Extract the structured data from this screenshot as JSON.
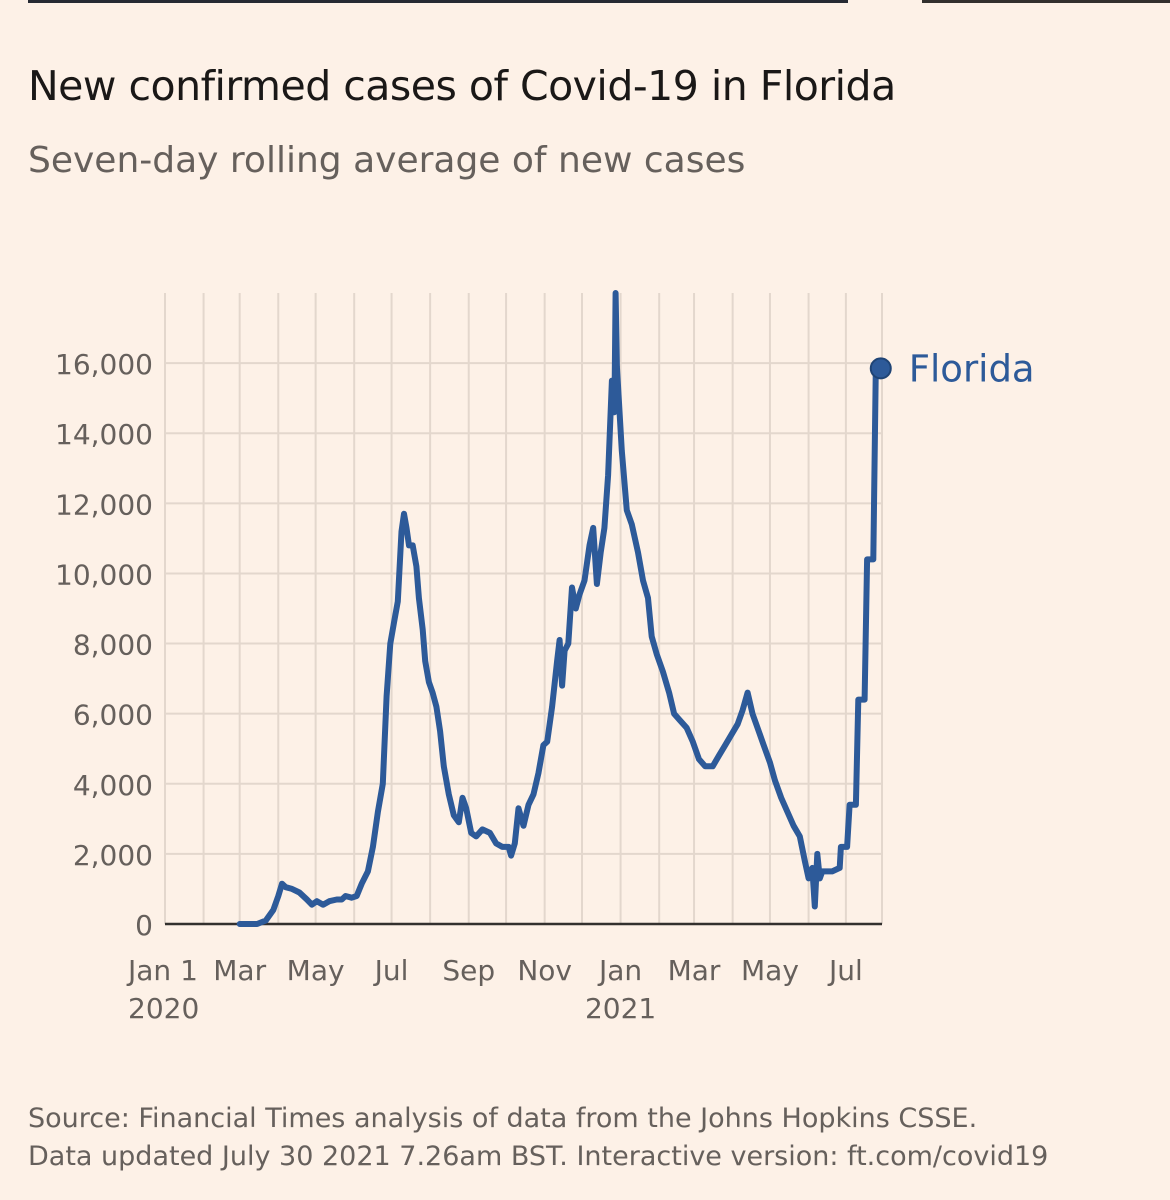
{
  "header": {
    "title": "New confirmed cases of Covid-19 in Florida",
    "subtitle": "Seven-day rolling average of new cases"
  },
  "footer": {
    "source_line": "Source: Financial Times analysis of data from the Johns Hopkins CSSE.",
    "updated_line": "Data updated July 30 2021 7.26am BST. Interactive version: ft.com/covid19"
  },
  "colors": {
    "background": "#fdf1e7",
    "line": "#2d5a99",
    "grid": "#e3d7cd",
    "axis": "#33302e",
    "tick_text": "#66605c"
  },
  "chart_data": {
    "type": "line",
    "title": "New confirmed cases of Covid-19 in Florida",
    "subtitle": "Seven-day rolling average of new cases",
    "xlabel": "",
    "ylabel": "",
    "xlim": [
      "2020-01-01",
      "2021-07-30"
    ],
    "ylim": [
      0,
      18000
    ],
    "grid": true,
    "y_ticks": [
      0,
      2000,
      4000,
      6000,
      8000,
      10000,
      12000,
      14000,
      16000
    ],
    "y_tick_labels": [
      "0",
      "2,000",
      "4,000",
      "6,000",
      "8,000",
      "10,000",
      "12,000",
      "14,000",
      "16,000"
    ],
    "x_ticks": [
      {
        "date": "2020-01-01",
        "label": "Jan 1",
        "sublabel": "2020"
      },
      {
        "date": "2020-03-01",
        "label": "Mar"
      },
      {
        "date": "2020-05-01",
        "label": "May"
      },
      {
        "date": "2020-07-01",
        "label": "Jul"
      },
      {
        "date": "2020-09-01",
        "label": "Sep"
      },
      {
        "date": "2020-11-01",
        "label": "Nov"
      },
      {
        "date": "2021-01-01",
        "label": "Jan",
        "sublabel": "2021"
      },
      {
        "date": "2021-03-01",
        "label": "Mar"
      },
      {
        "date": "2021-05-01",
        "label": "May"
      },
      {
        "date": "2021-07-01",
        "label": "Jul"
      }
    ],
    "series": [
      {
        "name": "Florida",
        "end_value": 15850,
        "points": [
          [
            "2020-03-01",
            0
          ],
          [
            "2020-03-15",
            0
          ],
          [
            "2020-03-22",
            100
          ],
          [
            "2020-03-28",
            400
          ],
          [
            "2020-04-01",
            800
          ],
          [
            "2020-04-04",
            1150
          ],
          [
            "2020-04-07",
            1050
          ],
          [
            "2020-04-12",
            1000
          ],
          [
            "2020-04-18",
            900
          ],
          [
            "2020-04-24",
            700
          ],
          [
            "2020-04-28",
            550
          ],
          [
            "2020-05-02",
            650
          ],
          [
            "2020-05-07",
            550
          ],
          [
            "2020-05-12",
            650
          ],
          [
            "2020-05-18",
            700
          ],
          [
            "2020-05-22",
            700
          ],
          [
            "2020-05-25",
            800
          ],
          [
            "2020-05-30",
            750
          ],
          [
            "2020-06-03",
            800
          ],
          [
            "2020-06-07",
            1150
          ],
          [
            "2020-06-12",
            1500
          ],
          [
            "2020-06-16",
            2200
          ],
          [
            "2020-06-20",
            3200
          ],
          [
            "2020-06-24",
            4000
          ],
          [
            "2020-06-27",
            6500
          ],
          [
            "2020-06-30",
            8000
          ],
          [
            "2020-07-03",
            8600
          ],
          [
            "2020-07-06",
            9200
          ],
          [
            "2020-07-09",
            11200
          ],
          [
            "2020-07-11",
            11700
          ],
          [
            "2020-07-13",
            11300
          ],
          [
            "2020-07-15",
            10800
          ],
          [
            "2020-07-18",
            10800
          ],
          [
            "2020-07-21",
            10200
          ],
          [
            "2020-07-23",
            9300
          ],
          [
            "2020-07-26",
            8400
          ],
          [
            "2020-07-28",
            7500
          ],
          [
            "2020-07-31",
            6900
          ],
          [
            "2020-08-03",
            6600
          ],
          [
            "2020-08-06",
            6200
          ],
          [
            "2020-08-09",
            5500
          ],
          [
            "2020-08-12",
            4500
          ],
          [
            "2020-08-16",
            3700
          ],
          [
            "2020-08-20",
            3100
          ],
          [
            "2020-08-24",
            2900
          ],
          [
            "2020-08-27",
            3600
          ],
          [
            "2020-08-30",
            3300
          ],
          [
            "2020-09-03",
            2600
          ],
          [
            "2020-09-07",
            2500
          ],
          [
            "2020-09-12",
            2700
          ],
          [
            "2020-09-18",
            2600
          ],
          [
            "2020-09-23",
            2300
          ],
          [
            "2020-09-28",
            2200
          ],
          [
            "2020-10-03",
            2200
          ],
          [
            "2020-10-05",
            1950
          ],
          [
            "2020-10-08",
            2300
          ],
          [
            "2020-10-11",
            3300
          ],
          [
            "2020-10-15",
            2800
          ],
          [
            "2020-10-19",
            3400
          ],
          [
            "2020-10-23",
            3700
          ],
          [
            "2020-10-27",
            4300
          ],
          [
            "2020-10-31",
            5100
          ],
          [
            "2020-11-03",
            5200
          ],
          [
            "2020-11-07",
            6200
          ],
          [
            "2020-11-11",
            7500
          ],
          [
            "2020-11-13",
            8100
          ],
          [
            "2020-11-15",
            6800
          ],
          [
            "2020-11-17",
            7800
          ],
          [
            "2020-11-20",
            8000
          ],
          [
            "2020-11-23",
            9600
          ],
          [
            "2020-11-26",
            9000
          ],
          [
            "2020-11-29",
            9400
          ],
          [
            "2020-12-03",
            9800
          ],
          [
            "2020-12-07",
            10800
          ],
          [
            "2020-12-10",
            11300
          ],
          [
            "2020-12-13",
            9700
          ],
          [
            "2020-12-16",
            10600
          ],
          [
            "2020-12-19",
            11300
          ],
          [
            "2020-12-22",
            12800
          ],
          [
            "2020-12-25",
            15500
          ],
          [
            "2020-12-27",
            14600
          ],
          [
            "2020-12-29",
            15900
          ],
          [
            "2021-01-02",
            13500
          ],
          [
            "2021-01-06",
            11800
          ],
          [
            "2021-01-10",
            11400
          ],
          [
            "2021-01-15",
            10600
          ],
          [
            "2021-01-19",
            9800
          ],
          [
            "2021-01-23",
            9300
          ],
          [
            "2021-01-26",
            8200
          ],
          [
            "2021-01-30",
            7700
          ],
          [
            "2021-02-04",
            7200
          ],
          [
            "2021-02-09",
            6600
          ],
          [
            "2021-02-13",
            6000
          ],
          [
            "2021-02-18",
            5800
          ],
          [
            "2021-02-23",
            5600
          ],
          [
            "2021-02-28",
            5200
          ],
          [
            "2021-03-05",
            4700
          ],
          [
            "2021-03-10",
            4500
          ],
          [
            "2021-03-16",
            4500
          ],
          [
            "2021-03-21",
            4800
          ],
          [
            "2021-03-26",
            5100
          ],
          [
            "2021-03-31",
            5400
          ],
          [
            "2021-04-05",
            5700
          ],
          [
            "2021-04-09",
            6100
          ],
          [
            "2021-04-13",
            6600
          ],
          [
            "2021-04-17",
            6000
          ],
          [
            "2021-04-21",
            5600
          ],
          [
            "2021-04-26",
            5100
          ],
          [
            "2021-05-01",
            4600
          ],
          [
            "2021-05-05",
            4100
          ],
          [
            "2021-05-10",
            3600
          ],
          [
            "2021-05-15",
            3200
          ],
          [
            "2021-05-20",
            2800
          ],
          [
            "2021-05-25",
            2500
          ],
          [
            "2021-05-29",
            1800
          ],
          [
            "2021-06-01",
            1300
          ],
          [
            "2021-06-04",
            1600
          ],
          [
            "2021-06-06",
            500
          ],
          [
            "2021-06-08",
            2000
          ],
          [
            "2021-06-10",
            1300
          ],
          [
            "2021-06-12",
            1500
          ],
          [
            "2021-06-20",
            1500
          ],
          [
            "2021-06-26",
            1600
          ],
          [
            "2021-06-27",
            2200
          ],
          [
            "2021-07-02",
            2200
          ],
          [
            "2021-07-04",
            3400
          ],
          [
            "2021-07-09",
            3400
          ],
          [
            "2021-07-11",
            6400
          ],
          [
            "2021-07-16",
            6400
          ],
          [
            "2021-07-18",
            10400
          ],
          [
            "2021-07-23",
            10400
          ],
          [
            "2021-07-25",
            15850
          ],
          [
            "2021-07-29",
            15850
          ]
        ],
        "spike": {
          "date": "2020-12-28",
          "value": 18000
        }
      }
    ]
  }
}
